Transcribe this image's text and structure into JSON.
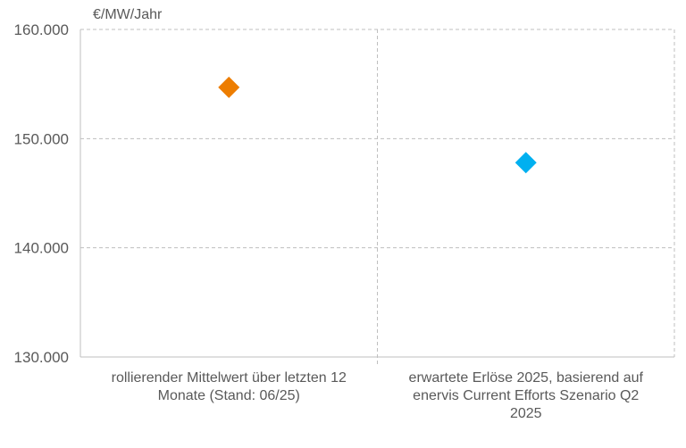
{
  "chart_data": {
    "type": "scatter",
    "ylabel": "€/MW/Jahr",
    "ylim": [
      130000,
      160000
    ],
    "yticks": [
      130000,
      140000,
      150000,
      160000
    ],
    "ytick_labels": [
      "130.000",
      "140.000",
      "150.000",
      "160.000"
    ],
    "grid": true,
    "categories": [
      {
        "lines": [
          "rollierender Mittelwert über letzten 12",
          "Monate (Stand: 06/25)"
        ],
        "value": 154700,
        "color": "#ED7D00",
        "marker": "diamond"
      },
      {
        "lines": [
          "erwartete Erlöse 2025, basierend auf",
          "enervis Current Efforts Szenario Q2",
          "2025"
        ],
        "value": 147800,
        "color": "#00B0F0",
        "marker": "diamond"
      }
    ]
  }
}
